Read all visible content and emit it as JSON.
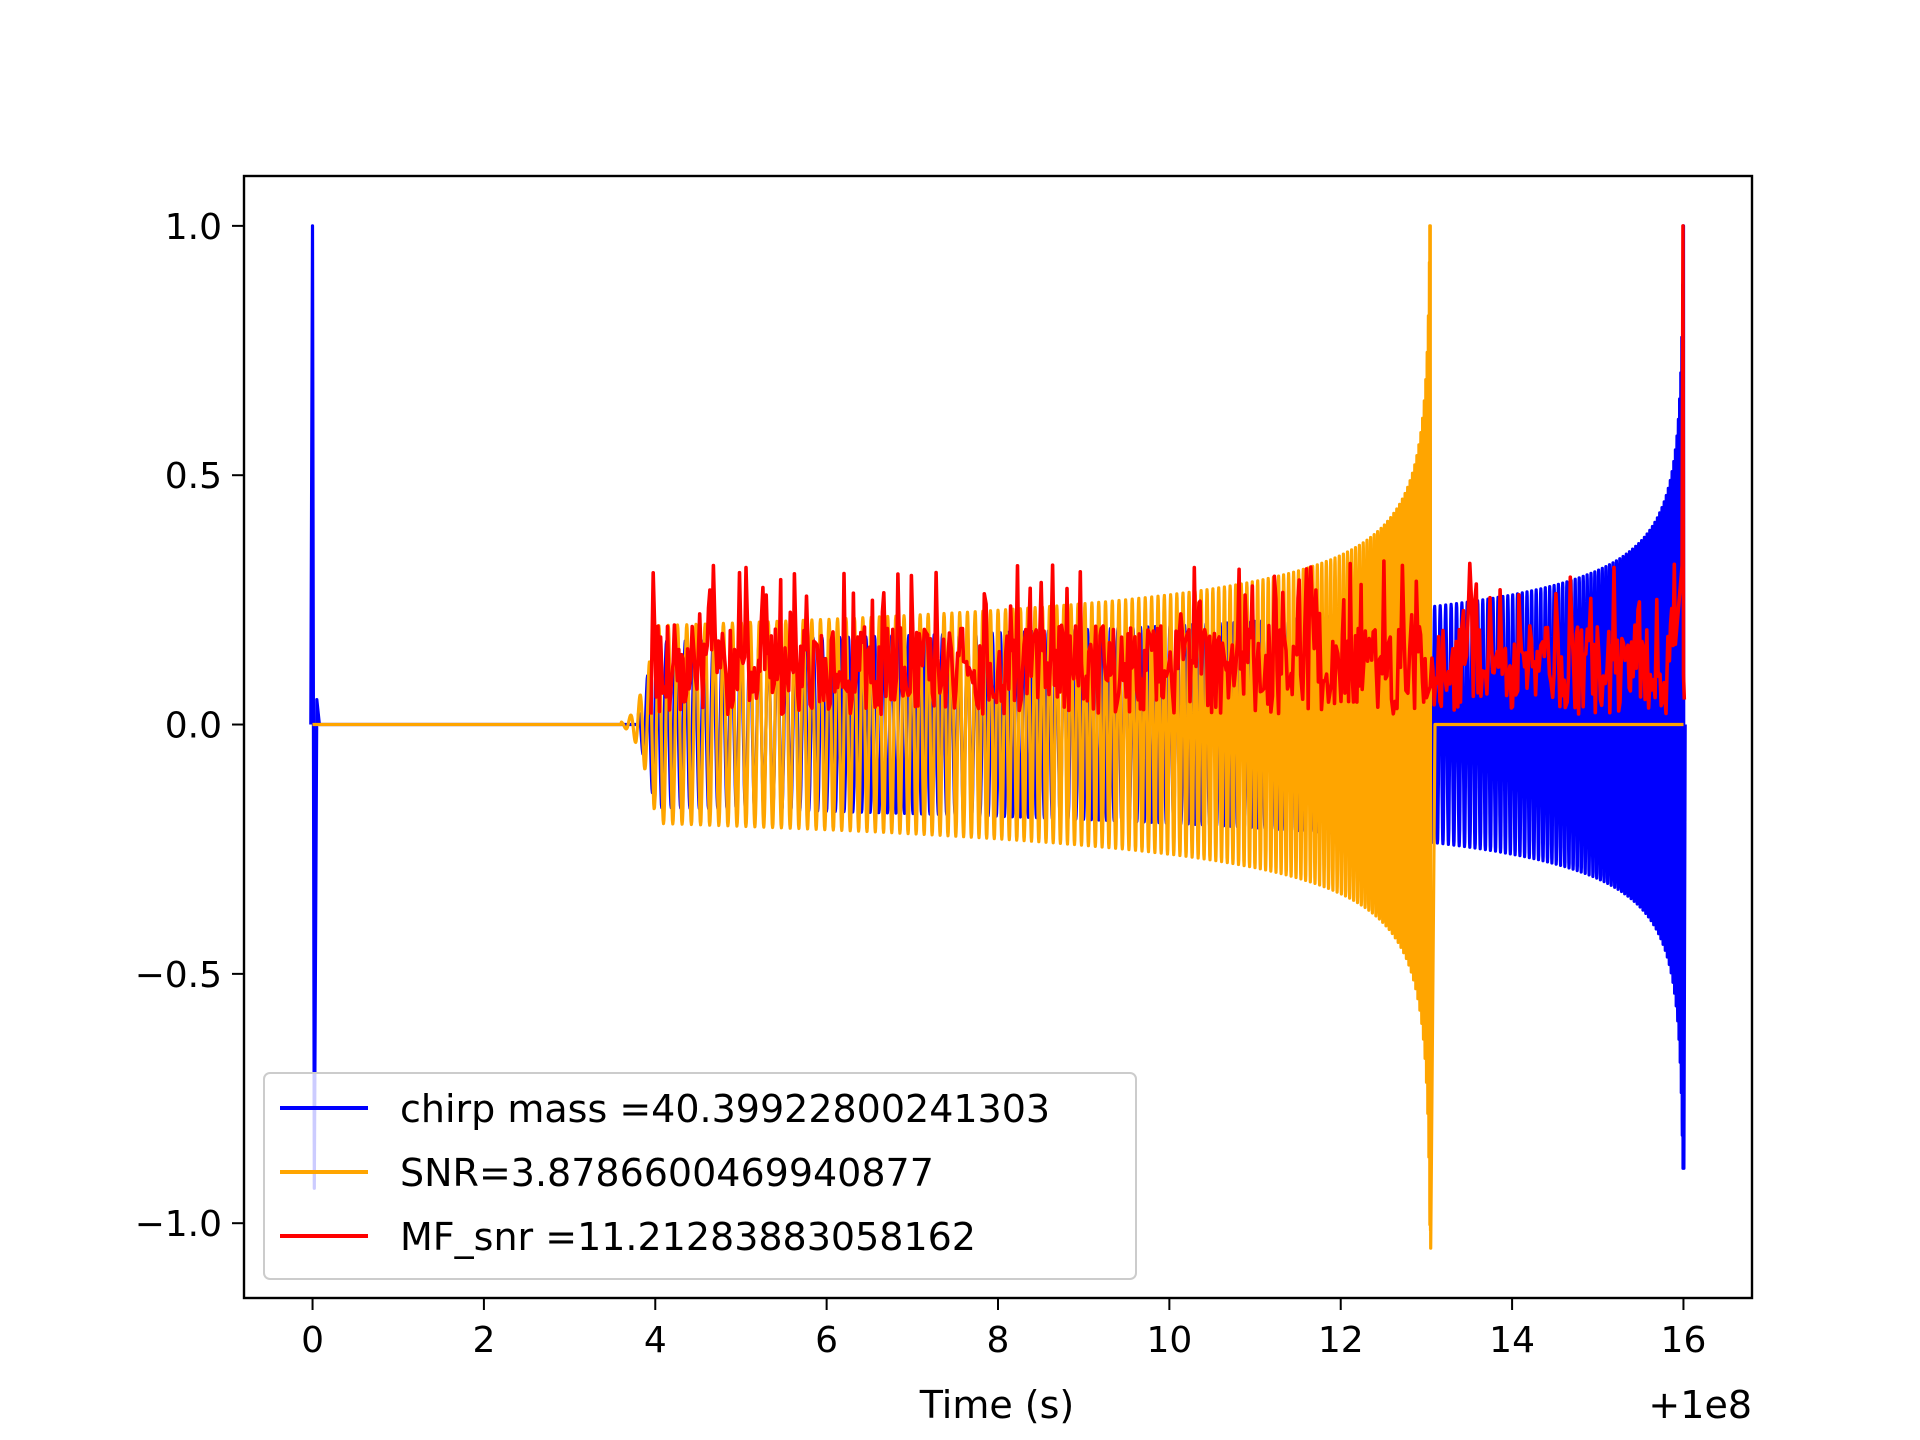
{
  "chart_data": {
    "type": "line",
    "title": "",
    "xlabel": "Time (s)",
    "ylabel": "",
    "x_offset_label": "+1e8",
    "xlim": [
      -0.8,
      16.8
    ],
    "ylim": [
      -1.15,
      1.1
    ],
    "x_ticks": [
      0,
      2,
      4,
      6,
      8,
      10,
      12,
      14,
      16
    ],
    "x_tick_labels": [
      "0",
      "2",
      "4",
      "6",
      "8",
      "10",
      "12",
      "14",
      "16"
    ],
    "y_ticks": [
      1.0,
      0.5,
      0.0,
      -0.5,
      -1.0
    ],
    "y_tick_labels": [
      "1.0",
      "0.5",
      "0.0",
      "−0.5",
      "−1.0"
    ],
    "grid": false,
    "legend_position": "lower-left",
    "series": [
      {
        "name": "chirp mass =40.39922800241303",
        "color": "#0000ff",
        "description_values": {
          "spike_at": 0.0,
          "spike_max": 1.0,
          "spike_min": -0.93,
          "chirp_start": 3.8,
          "chirp_end": 16.0,
          "amplitude_start": 0.02,
          "amplitude_at_13": 0.24,
          "peak_max": 1.0,
          "peak_min": -0.89
        }
      },
      {
        "name": "SNR=3.8786600469940877",
        "color": "#ffa500",
        "description_values": {
          "flat_from": 0.0,
          "flat_to": 3.6,
          "chirp_start": 3.6,
          "chirp_end": 13.05,
          "amplitude_at_4": 0.18,
          "amplitude_at_10": 0.26,
          "peak_max": 1.0,
          "peak_min": -1.05,
          "zero_after": 13.1
        }
      },
      {
        "name": "MF_snr =11.21283883058162",
        "color": "#ff0000",
        "description_values": {
          "start": 3.95,
          "end": 16.0,
          "band_low": 0.02,
          "band_high": 0.2,
          "spike_level": 0.33,
          "final_peak": 1.0
        }
      }
    ]
  }
}
